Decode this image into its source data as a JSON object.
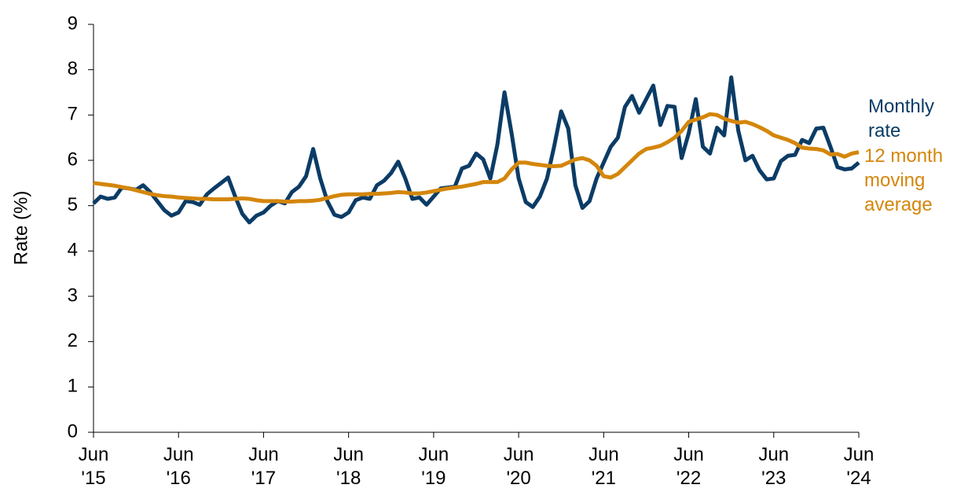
{
  "chart_data": {
    "type": "line",
    "y_label": "Rate (%)",
    "categories": [
      "Jun '15",
      null,
      null,
      null,
      null,
      null,
      null,
      null,
      null,
      null,
      null,
      null,
      "Jun '16",
      null,
      null,
      null,
      null,
      null,
      null,
      null,
      null,
      null,
      null,
      null,
      "Jun '17",
      null,
      null,
      null,
      null,
      null,
      null,
      null,
      null,
      null,
      null,
      null,
      "Jun '18",
      null,
      null,
      null,
      null,
      null,
      null,
      null,
      null,
      null,
      null,
      null,
      "Jun '19",
      null,
      null,
      null,
      null,
      null,
      null,
      null,
      null,
      null,
      null,
      null,
      "Jun '20",
      null,
      null,
      null,
      null,
      null,
      null,
      null,
      null,
      null,
      null,
      null,
      "Jun '21",
      null,
      null,
      null,
      null,
      null,
      null,
      null,
      null,
      null,
      null,
      null,
      "Jun '22",
      null,
      null,
      null,
      null,
      null,
      null,
      null,
      null,
      null,
      null,
      null,
      "Jun '23",
      null,
      null,
      null,
      null,
      null,
      null,
      null,
      null,
      null,
      null,
      null,
      "Jun '24"
    ],
    "series": [
      {
        "name": "Monthly rate",
        "color": "#0b3c66",
        "values": [
          5.05,
          5.2,
          5.15,
          5.18,
          5.4,
          5.38,
          5.35,
          5.45,
          5.3,
          5.1,
          4.9,
          4.78,
          4.85,
          5.1,
          5.08,
          5.02,
          5.25,
          5.38,
          5.5,
          5.62,
          5.2,
          4.82,
          4.63,
          4.78,
          4.85,
          5.0,
          5.1,
          5.05,
          5.3,
          5.42,
          5.65,
          6.25,
          5.6,
          5.1,
          4.8,
          4.75,
          4.85,
          5.12,
          5.18,
          5.15,
          5.45,
          5.55,
          5.72,
          5.97,
          5.6,
          5.15,
          5.18,
          5.02,
          5.2,
          5.38,
          5.4,
          5.42,
          5.82,
          5.88,
          6.15,
          6.02,
          5.6,
          6.35,
          7.5,
          6.6,
          5.6,
          5.08,
          4.97,
          5.2,
          5.6,
          6.3,
          7.08,
          6.7,
          5.45,
          4.95,
          5.1,
          5.6,
          5.95,
          6.3,
          6.5,
          7.18,
          7.42,
          7.05,
          7.35,
          7.65,
          6.78,
          7.2,
          7.18,
          6.05,
          6.6,
          7.35,
          6.3,
          6.15,
          6.72,
          6.55,
          7.83,
          6.65,
          6.0,
          6.1,
          5.78,
          5.58,
          5.6,
          5.98,
          6.1,
          6.12,
          6.45,
          6.38,
          6.7,
          6.72,
          6.3,
          5.85,
          5.8,
          5.82,
          5.95
        ]
      },
      {
        "name": "12 month moving average",
        "color": "#d4860b",
        "values": [
          5.5,
          5.48,
          5.46,
          5.44,
          5.41,
          5.38,
          5.34,
          5.3,
          5.26,
          5.23,
          5.21,
          5.2,
          5.18,
          5.17,
          5.16,
          5.15,
          5.15,
          5.14,
          5.14,
          5.14,
          5.15,
          5.16,
          5.15,
          5.12,
          5.1,
          5.1,
          5.1,
          5.09,
          5.09,
          5.1,
          5.1,
          5.11,
          5.13,
          5.17,
          5.21,
          5.24,
          5.25,
          5.25,
          5.25,
          5.26,
          5.26,
          5.27,
          5.28,
          5.3,
          5.29,
          5.27,
          5.27,
          5.29,
          5.32,
          5.35,
          5.38,
          5.4,
          5.42,
          5.45,
          5.48,
          5.52,
          5.52,
          5.52,
          5.6,
          5.8,
          5.95,
          5.95,
          5.92,
          5.9,
          5.88,
          5.87,
          5.88,
          5.95,
          6.02,
          6.05,
          6.0,
          5.88,
          5.65,
          5.62,
          5.7,
          5.85,
          6.0,
          6.15,
          6.25,
          6.28,
          6.32,
          6.4,
          6.5,
          6.65,
          6.85,
          6.9,
          6.95,
          7.02,
          7.0,
          6.92,
          6.87,
          6.83,
          6.85,
          6.8,
          6.73,
          6.65,
          6.55,
          6.5,
          6.45,
          6.38,
          6.28,
          6.26,
          6.25,
          6.22,
          6.13,
          6.14,
          6.08,
          6.15,
          6.18
        ]
      }
    ],
    "ylim": [
      0,
      9
    ],
    "yticks": [
      0,
      1,
      2,
      3,
      4,
      5,
      6,
      7,
      8,
      9
    ],
    "grid": false
  }
}
